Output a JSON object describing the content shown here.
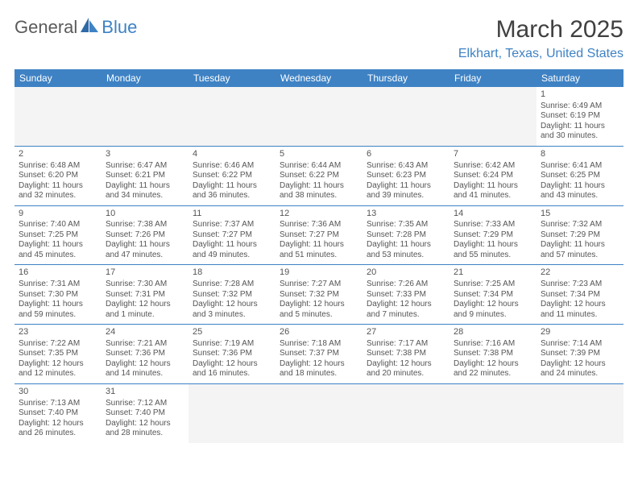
{
  "logo": {
    "text1": "General",
    "text2": "Blue"
  },
  "title": "March 2025",
  "location": "Elkhart, Texas, United States",
  "colors": {
    "header_bg": "#3e82c4",
    "header_fg": "#ffffff",
    "text": "#555555",
    "logo_gray": "#5a5a5a",
    "logo_blue": "#3e82c4",
    "border": "#3e82c4",
    "empty_bg": "#f4f4f4"
  },
  "weekdays": [
    "Sunday",
    "Monday",
    "Tuesday",
    "Wednesday",
    "Thursday",
    "Friday",
    "Saturday"
  ],
  "grid": [
    [
      null,
      null,
      null,
      null,
      null,
      null,
      {
        "n": "1",
        "sr": "Sunrise: 6:49 AM",
        "ss": "Sunset: 6:19 PM",
        "dl": "Daylight: 11 hours and 30 minutes."
      }
    ],
    [
      {
        "n": "2",
        "sr": "Sunrise: 6:48 AM",
        "ss": "Sunset: 6:20 PM",
        "dl": "Daylight: 11 hours and 32 minutes."
      },
      {
        "n": "3",
        "sr": "Sunrise: 6:47 AM",
        "ss": "Sunset: 6:21 PM",
        "dl": "Daylight: 11 hours and 34 minutes."
      },
      {
        "n": "4",
        "sr": "Sunrise: 6:46 AM",
        "ss": "Sunset: 6:22 PM",
        "dl": "Daylight: 11 hours and 36 minutes."
      },
      {
        "n": "5",
        "sr": "Sunrise: 6:44 AM",
        "ss": "Sunset: 6:22 PM",
        "dl": "Daylight: 11 hours and 38 minutes."
      },
      {
        "n": "6",
        "sr": "Sunrise: 6:43 AM",
        "ss": "Sunset: 6:23 PM",
        "dl": "Daylight: 11 hours and 39 minutes."
      },
      {
        "n": "7",
        "sr": "Sunrise: 6:42 AM",
        "ss": "Sunset: 6:24 PM",
        "dl": "Daylight: 11 hours and 41 minutes."
      },
      {
        "n": "8",
        "sr": "Sunrise: 6:41 AM",
        "ss": "Sunset: 6:25 PM",
        "dl": "Daylight: 11 hours and 43 minutes."
      }
    ],
    [
      {
        "n": "9",
        "sr": "Sunrise: 7:40 AM",
        "ss": "Sunset: 7:25 PM",
        "dl": "Daylight: 11 hours and 45 minutes."
      },
      {
        "n": "10",
        "sr": "Sunrise: 7:38 AM",
        "ss": "Sunset: 7:26 PM",
        "dl": "Daylight: 11 hours and 47 minutes."
      },
      {
        "n": "11",
        "sr": "Sunrise: 7:37 AM",
        "ss": "Sunset: 7:27 PM",
        "dl": "Daylight: 11 hours and 49 minutes."
      },
      {
        "n": "12",
        "sr": "Sunrise: 7:36 AM",
        "ss": "Sunset: 7:27 PM",
        "dl": "Daylight: 11 hours and 51 minutes."
      },
      {
        "n": "13",
        "sr": "Sunrise: 7:35 AM",
        "ss": "Sunset: 7:28 PM",
        "dl": "Daylight: 11 hours and 53 minutes."
      },
      {
        "n": "14",
        "sr": "Sunrise: 7:33 AM",
        "ss": "Sunset: 7:29 PM",
        "dl": "Daylight: 11 hours and 55 minutes."
      },
      {
        "n": "15",
        "sr": "Sunrise: 7:32 AM",
        "ss": "Sunset: 7:29 PM",
        "dl": "Daylight: 11 hours and 57 minutes."
      }
    ],
    [
      {
        "n": "16",
        "sr": "Sunrise: 7:31 AM",
        "ss": "Sunset: 7:30 PM",
        "dl": "Daylight: 11 hours and 59 minutes."
      },
      {
        "n": "17",
        "sr": "Sunrise: 7:30 AM",
        "ss": "Sunset: 7:31 PM",
        "dl": "Daylight: 12 hours and 1 minute."
      },
      {
        "n": "18",
        "sr": "Sunrise: 7:28 AM",
        "ss": "Sunset: 7:32 PM",
        "dl": "Daylight: 12 hours and 3 minutes."
      },
      {
        "n": "19",
        "sr": "Sunrise: 7:27 AM",
        "ss": "Sunset: 7:32 PM",
        "dl": "Daylight: 12 hours and 5 minutes."
      },
      {
        "n": "20",
        "sr": "Sunrise: 7:26 AM",
        "ss": "Sunset: 7:33 PM",
        "dl": "Daylight: 12 hours and 7 minutes."
      },
      {
        "n": "21",
        "sr": "Sunrise: 7:25 AM",
        "ss": "Sunset: 7:34 PM",
        "dl": "Daylight: 12 hours and 9 minutes."
      },
      {
        "n": "22",
        "sr": "Sunrise: 7:23 AM",
        "ss": "Sunset: 7:34 PM",
        "dl": "Daylight: 12 hours and 11 minutes."
      }
    ],
    [
      {
        "n": "23",
        "sr": "Sunrise: 7:22 AM",
        "ss": "Sunset: 7:35 PM",
        "dl": "Daylight: 12 hours and 12 minutes."
      },
      {
        "n": "24",
        "sr": "Sunrise: 7:21 AM",
        "ss": "Sunset: 7:36 PM",
        "dl": "Daylight: 12 hours and 14 minutes."
      },
      {
        "n": "25",
        "sr": "Sunrise: 7:19 AM",
        "ss": "Sunset: 7:36 PM",
        "dl": "Daylight: 12 hours and 16 minutes."
      },
      {
        "n": "26",
        "sr": "Sunrise: 7:18 AM",
        "ss": "Sunset: 7:37 PM",
        "dl": "Daylight: 12 hours and 18 minutes."
      },
      {
        "n": "27",
        "sr": "Sunrise: 7:17 AM",
        "ss": "Sunset: 7:38 PM",
        "dl": "Daylight: 12 hours and 20 minutes."
      },
      {
        "n": "28",
        "sr": "Sunrise: 7:16 AM",
        "ss": "Sunset: 7:38 PM",
        "dl": "Daylight: 12 hours and 22 minutes."
      },
      {
        "n": "29",
        "sr": "Sunrise: 7:14 AM",
        "ss": "Sunset: 7:39 PM",
        "dl": "Daylight: 12 hours and 24 minutes."
      }
    ],
    [
      {
        "n": "30",
        "sr": "Sunrise: 7:13 AM",
        "ss": "Sunset: 7:40 PM",
        "dl": "Daylight: 12 hours and 26 minutes."
      },
      {
        "n": "31",
        "sr": "Sunrise: 7:12 AM",
        "ss": "Sunset: 7:40 PM",
        "dl": "Daylight: 12 hours and 28 minutes."
      },
      null,
      null,
      null,
      null,
      null
    ]
  ]
}
